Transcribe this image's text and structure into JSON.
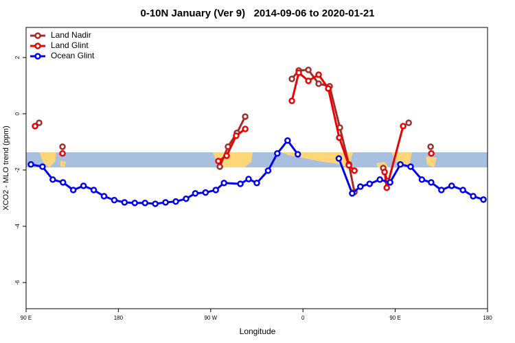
{
  "chart_data": {
    "type": "line",
    "title": "0-10N January (Ver 9)   2014-09-06 to 2020-01-21",
    "xlabel": "Longitude",
    "ylabel": "XCO2 - MLO trend (ppm)",
    "xlim": [
      90,
      540
    ],
    "ylim": [
      -6.93,
      3.07
    ],
    "xticks": [
      {
        "value": 90,
        "label": "90 E"
      },
      180,
      {
        "value": 270,
        "label": "90 W"
      },
      {
        "value": 360,
        "label": "0"
      },
      {
        "value": 450,
        "label": "90 E"
      },
      {
        "value": 540,
        "label": "180"
      }
    ],
    "yticks": [
      -6,
      -4,
      -2,
      0,
      2
    ],
    "legend": "top-left",
    "series": [
      {
        "name": "Land Nadir",
        "color": "#a52a2a",
        "x": [
          102.7,
          null,
          125.5,
          null,
          278.9,
          286.9,
          295.6,
          303.7,
          null,
          349.2,
          355.9,
          365.3,
          375.3,
          386,
          396,
          404.8,
          410.2,
          null,
          438.3,
          442.3,
          null,
          463.1,
          null,
          484.5
        ],
        "values": [
          -0.32,
          null,
          -1.17,
          null,
          -1.88,
          -1.17,
          -0.68,
          -0.1,
          null,
          1.24,
          1.54,
          1.56,
          1.07,
          0.98,
          -0.49,
          -1.8,
          -2.78,
          null,
          -1.93,
          -2.39,
          null,
          -0.32,
          null,
          -1.17
        ]
      },
      {
        "name": "Land Glint",
        "color": "#ee0000",
        "x": [
          98.7,
          null,
          125.5,
          null,
          277.5,
          285.6,
          294.9,
          303.7,
          null,
          349.2,
          355.9,
          365.3,
          375.3,
          384.7,
          395.4,
          404.8,
          410.2,
          null,
          439.6,
          441.7,
          457.7,
          null,
          485.2
        ],
        "values": [
          -0.44,
          null,
          -1.41,
          null,
          -1.68,
          -1.49,
          -0.78,
          -0.54,
          null,
          0.46,
          1.46,
          1.17,
          1.39,
          0.9,
          -0.85,
          -1.83,
          -2.02,
          null,
          -2.07,
          -2.63,
          -0.44,
          null,
          -1.41
        ]
      },
      {
        "name": "Ocean Glint",
        "color": "#0000ee",
        "x": [
          94.7,
          106,
          116,
          126,
          136,
          146,
          156,
          166,
          176,
          186,
          196,
          206,
          216,
          226,
          236,
          246,
          255,
          265,
          275,
          283,
          299,
          307,
          315,
          326,
          335,
          345,
          355,
          null,
          395,
          408,
          416,
          425,
          435,
          445,
          455,
          465,
          476,
          485,
          495,
          505,
          516,
          526,
          536
        ],
        "values": [
          -1.8,
          -1.88,
          -2.34,
          -2.44,
          -2.71,
          -2.56,
          -2.71,
          -2.93,
          -3.07,
          -3.15,
          -3.17,
          -3.17,
          -3.2,
          -3.15,
          -3.12,
          -3.02,
          -2.83,
          -2.8,
          -2.71,
          -2.46,
          -2.49,
          -2.32,
          -2.46,
          -2.02,
          -1.41,
          -0.95,
          -1.44,
          null,
          -1.59,
          -2.83,
          -2.59,
          -2.49,
          -2.34,
          -2.44,
          -1.8,
          -1.88,
          -2.34,
          -2.44,
          -2.71,
          -2.56,
          -2.71,
          -2.93,
          -3.05
        ]
      }
    ]
  }
}
